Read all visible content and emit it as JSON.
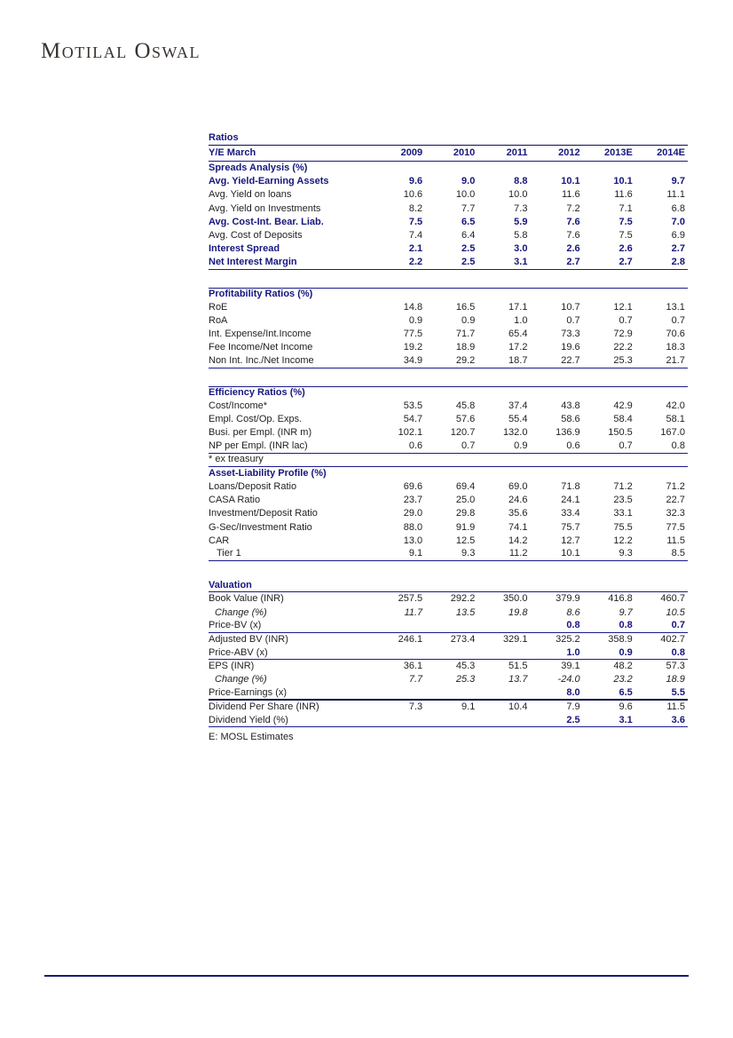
{
  "page": {
    "logo_text": "Motilal Oswal"
  },
  "colors": {
    "navy_text": "#16167E",
    "highlight_lavender": "#CCCBF0",
    "rule_navy": "#1A1A8C",
    "body_text": "#222222"
  },
  "table": {
    "title": "Ratios",
    "footnote": "E: MOSL Estimates",
    "header": {
      "label": "Y/E March",
      "columns": [
        "2009",
        "2010",
        "2011",
        "2012",
        "2013E",
        "2014E"
      ]
    },
    "highlight_columns": [
      "2013E",
      "2014E"
    ],
    "rows": [
      {
        "type": "section",
        "label": "Spreads Analysis (%)"
      },
      {
        "type": "data",
        "label": "Avg. Yield-Earning Assets",
        "style": "bold",
        "values": [
          "9.6",
          "9.0",
          "8.8",
          "10.1",
          "10.1",
          "9.7"
        ]
      },
      {
        "type": "data",
        "label": "Avg. Yield on loans",
        "values": [
          "10.6",
          "10.0",
          "10.0",
          "11.6",
          "11.6",
          "11.1"
        ]
      },
      {
        "type": "data",
        "label": "Avg. Yield on Investments",
        "values": [
          "8.2",
          "7.7",
          "7.3",
          "7.2",
          "7.1",
          "6.8"
        ]
      },
      {
        "type": "data",
        "label": "Avg. Cost-Int. Bear. Liab.",
        "style": "bold",
        "values": [
          "7.5",
          "6.5",
          "5.9",
          "7.6",
          "7.5",
          "7.0"
        ]
      },
      {
        "type": "data",
        "label": "Avg. Cost of Deposits",
        "values": [
          "7.4",
          "6.4",
          "5.8",
          "7.6",
          "7.5",
          "6.9"
        ]
      },
      {
        "type": "data",
        "label": "Interest Spread",
        "style": "bold",
        "values": [
          "2.1",
          "2.5",
          "3.0",
          "2.6",
          "2.6",
          "2.7"
        ]
      },
      {
        "type": "data",
        "label": "Net Interest Margin",
        "style": "bold",
        "border": "bottom",
        "values": [
          "2.2",
          "2.5",
          "3.1",
          "2.7",
          "2.7",
          "2.8"
        ]
      },
      {
        "type": "blank"
      },
      {
        "type": "section",
        "label": "Profitability Ratios (%)",
        "border": "top"
      },
      {
        "type": "data",
        "label": "RoE",
        "values": [
          "14.8",
          "16.5",
          "17.1",
          "10.7",
          "12.1",
          "13.1"
        ]
      },
      {
        "type": "data",
        "label": "RoA",
        "values": [
          "0.9",
          "0.9",
          "1.0",
          "0.7",
          "0.7",
          "0.7"
        ]
      },
      {
        "type": "data",
        "label": "Int. Expense/Int.Income",
        "values": [
          "77.5",
          "71.7",
          "65.4",
          "73.3",
          "72.9",
          "70.6"
        ]
      },
      {
        "type": "data",
        "label": "Fee Income/Net Income",
        "values": [
          "19.2",
          "18.9",
          "17.2",
          "19.6",
          "22.2",
          "18.3"
        ]
      },
      {
        "type": "data",
        "label": "Non Int. Inc./Net Income",
        "border": "bottom",
        "values": [
          "34.9",
          "29.2",
          "18.7",
          "22.7",
          "25.3",
          "21.7"
        ]
      },
      {
        "type": "blank"
      },
      {
        "type": "section",
        "label": "Efficiency Ratios (%)",
        "border": "top"
      },
      {
        "type": "data",
        "label": "Cost/Income*",
        "values": [
          "53.5",
          "45.8",
          "37.4",
          "43.8",
          "42.9",
          "42.0"
        ]
      },
      {
        "type": "data",
        "label": "Empl. Cost/Op. Exps.",
        "values": [
          "54.7",
          "57.6",
          "55.4",
          "58.6",
          "58.4",
          "58.1"
        ]
      },
      {
        "type": "data",
        "label": "Busi. per Empl. (INR m)",
        "values": [
          "102.1",
          "120.7",
          "132.0",
          "136.9",
          "150.5",
          "167.0"
        ]
      },
      {
        "type": "data",
        "label": "NP per Empl. (INR lac)",
        "border": "bottom",
        "values": [
          "0.6",
          "0.7",
          "0.9",
          "0.6",
          "0.7",
          "0.8"
        ]
      },
      {
        "type": "note",
        "label": "* ex treasury",
        "border": "bottom"
      },
      {
        "type": "section",
        "label": "Asset-Liability Profile (%)"
      },
      {
        "type": "data",
        "label": "Loans/Deposit Ratio",
        "values": [
          "69.6",
          "69.4",
          "69.0",
          "71.8",
          "71.2",
          "71.2"
        ]
      },
      {
        "type": "data",
        "label": "CASA Ratio",
        "values": [
          "23.7",
          "25.0",
          "24.6",
          "24.1",
          "23.5",
          "22.7"
        ]
      },
      {
        "type": "data",
        "label": "Investment/Deposit Ratio",
        "values": [
          "29.0",
          "29.8",
          "35.6",
          "33.4",
          "33.1",
          "32.3"
        ]
      },
      {
        "type": "data",
        "label": "G-Sec/Investment Ratio",
        "values": [
          "88.0",
          "91.9",
          "74.1",
          "75.7",
          "75.5",
          "77.5"
        ]
      },
      {
        "type": "data",
        "label": "CAR",
        "values": [
          "13.0",
          "12.5",
          "14.2",
          "12.7",
          "12.2",
          "11.5"
        ]
      },
      {
        "type": "data",
        "label": "Tier 1",
        "style": "indent",
        "border": "bottom",
        "values": [
          "9.1",
          "9.3",
          "11.2",
          "10.1",
          "9.3",
          "8.5"
        ]
      },
      {
        "type": "blank"
      },
      {
        "type": "section",
        "label": "Valuation",
        "border": "bottom"
      },
      {
        "type": "data",
        "label": "Book Value (INR)",
        "values": [
          "257.5",
          "292.2",
          "350.0",
          "379.9",
          "416.8",
          "460.7"
        ]
      },
      {
        "type": "data",
        "label": "Change (%)",
        "style": "italic",
        "values": [
          "11.7",
          "13.5",
          "19.8",
          "8.6",
          "9.7",
          "10.5"
        ]
      },
      {
        "type": "data",
        "label": "Price-BV (x)",
        "style": "bold-vals",
        "border": "bottom",
        "values": [
          "",
          "",
          "",
          "0.8",
          "0.8",
          "0.7"
        ]
      },
      {
        "type": "data",
        "label": "Adjusted BV (INR)",
        "values": [
          "246.1",
          "273.4",
          "329.1",
          "325.2",
          "358.9",
          "402.7"
        ]
      },
      {
        "type": "data",
        "label": "Price-ABV (x)",
        "style": "bold-vals",
        "border": "bottom",
        "values": [
          "",
          "",
          "",
          "1.0",
          "0.9",
          "0.8"
        ]
      },
      {
        "type": "data",
        "label": "EPS (INR)",
        "values": [
          "36.1",
          "45.3",
          "51.5",
          "39.1",
          "48.2",
          "57.3"
        ]
      },
      {
        "type": "data",
        "label": "Change (%)",
        "style": "italic",
        "values": [
          "7.7",
          "25.3",
          "13.7",
          "-24.0",
          "23.2",
          "18.9"
        ]
      },
      {
        "type": "data",
        "label": "Price-Earnings (x)",
        "style": "bold-vals",
        "border": "bottom-thick",
        "values": [
          "",
          "",
          "",
          "8.0",
          "6.5",
          "5.5"
        ]
      },
      {
        "type": "data",
        "label": "Dividend Per Share (INR)",
        "values": [
          "7.3",
          "9.1",
          "10.4",
          "7.9",
          "9.6",
          "11.5"
        ]
      },
      {
        "type": "data",
        "label": "Dividend Yield (%)",
        "style": "bold-vals",
        "border": "bottom",
        "values": [
          "",
          "",
          "",
          "2.5",
          "3.1",
          "3.6"
        ]
      }
    ]
  }
}
